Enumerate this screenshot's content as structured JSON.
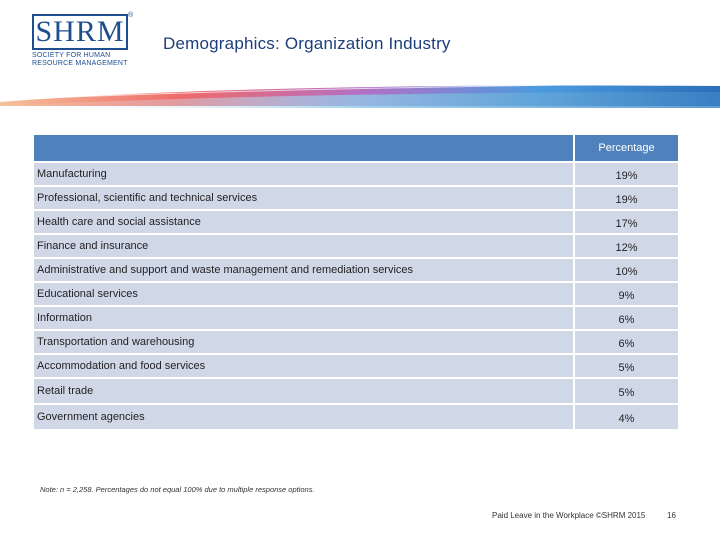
{
  "logo": {
    "text": "SHRM",
    "registered": "®",
    "tagline": "SOCIETY FOR HUMAN RESOURCE MANAGEMENT"
  },
  "slide": {
    "title": "Demographics: Organization Industry"
  },
  "table": {
    "column_header": "Percentage",
    "rows": [
      {
        "label": "Manufacturing",
        "value": "19%"
      },
      {
        "label": "Professional, scientific and technical services",
        "value": "19%"
      },
      {
        "label": "Health care and social assistance",
        "value": "17%"
      },
      {
        "label": "Finance and insurance",
        "value": "12%"
      },
      {
        "label": "Administrative and support and waste management and remediation services",
        "value": "10%"
      },
      {
        "label": "Educational services",
        "value": "9%"
      },
      {
        "label": "Information",
        "value": "6%"
      },
      {
        "label": "Transportation and warehousing",
        "value": "6%"
      },
      {
        "label": "Accommodation and food services",
        "value": "5%"
      },
      {
        "label": "Retail trade",
        "value": "5%"
      },
      {
        "label": "Government agencies",
        "value": "4%"
      }
    ]
  },
  "note": "Note: n = 2,258. Percentages do not equal 100% due to multiple response options.",
  "footer": {
    "text": "Paid Leave in the Workplace ©SHRM 2015",
    "page_number": "16"
  },
  "colors": {
    "header_bg": "#4f81bd",
    "row_bg": "#d0d8e8",
    "title": "#1d3e7a",
    "brand": "#1d4f8f"
  }
}
